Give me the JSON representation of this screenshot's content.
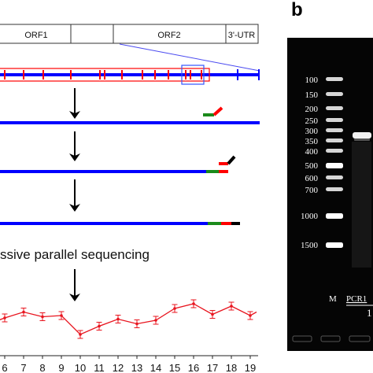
{
  "panel_b": {
    "label": "b",
    "ladder_labels": [
      "100",
      "150",
      "200",
      "250",
      "300",
      "350",
      "400",
      "500",
      "600",
      "700",
      "1000",
      "1500"
    ],
    "lane_marker": "M",
    "lane_pcr": "PCR1",
    "lane_number": "1"
  },
  "panel_a": {
    "genome_regions": [
      "ORF1",
      "ORF2",
      "3'-UTR"
    ],
    "sequencing_label": "ssive parallel sequencing",
    "x_tick_labels": [
      "6",
      "7",
      "8",
      "9",
      "10",
      "11",
      "12",
      "13",
      "14",
      "15",
      "16",
      "17",
      "18",
      "19"
    ],
    "colors": {
      "genome_line": "#0000ff",
      "primer_sites": "#ff0000",
      "amplicon_green": "#1a8a1a",
      "adapter_black": "#000000",
      "trace": "#e8141e"
    }
  },
  "chart_data": {
    "type": "line",
    "x": [
      6,
      7,
      8,
      9,
      10,
      11,
      12,
      13,
      14,
      15,
      16,
      17,
      18,
      19
    ],
    "series": [
      {
        "values": [
          52,
          57,
          53,
          54,
          38,
          45,
          51,
          47,
          50,
          60,
          64,
          55,
          62,
          54
        ]
      }
    ],
    "xlabel": "",
    "ylabel": "",
    "ylim": [
      20,
      80
    ],
    "error_bars": true,
    "grid": false
  }
}
